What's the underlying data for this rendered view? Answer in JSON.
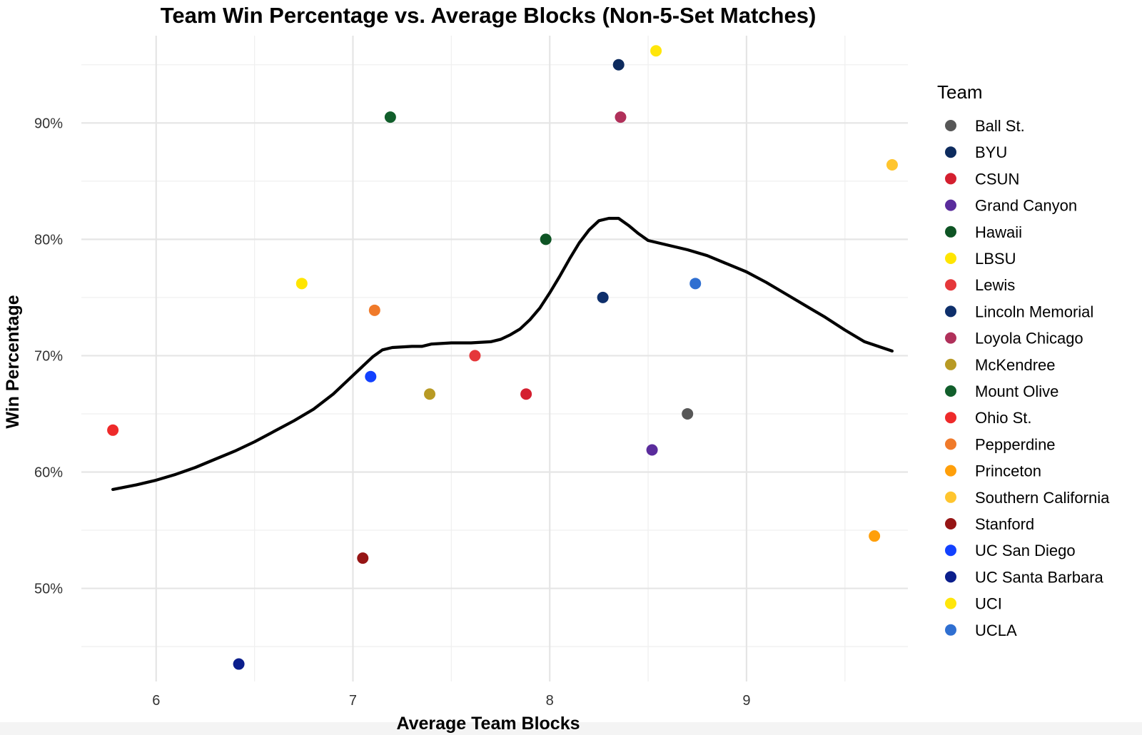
{
  "chart_data": {
    "type": "scatter",
    "title": "Team Win Percentage vs. Average Blocks (Non-5-Set Matches)",
    "xlabel": "Average Team Blocks",
    "ylabel": "Win Percentage",
    "xlim": [
      5.62,
      9.82
    ],
    "ylim": [
      0.42,
      0.975
    ],
    "x_ticks": [
      6,
      7,
      8,
      9
    ],
    "x_tick_labels": [
      "6",
      "7",
      "8",
      "9"
    ],
    "y_ticks": [
      0.5,
      0.6,
      0.7,
      0.8,
      0.9
    ],
    "y_tick_labels": [
      "50%",
      "60%",
      "70%",
      "80%",
      "90%"
    ],
    "grid": true,
    "legend": {
      "title": "Team",
      "placement": "right",
      "entries": [
        {
          "name": "Ball St.",
          "color": "#575757"
        },
        {
          "name": "BYU",
          "color": "#0d2b5e"
        },
        {
          "name": "CSUN",
          "color": "#d41f2f"
        },
        {
          "name": "Grand Canyon",
          "color": "#5a2c9c"
        },
        {
          "name": "Hawaii",
          "color": "#0e5424"
        },
        {
          "name": "LBSU",
          "color": "#ffe500"
        },
        {
          "name": "Lewis",
          "color": "#e5373a"
        },
        {
          "name": "Lincoln Memorial",
          "color": "#0e2f6b"
        },
        {
          "name": "Loyola Chicago",
          "color": "#b0305a"
        },
        {
          "name": "McKendree",
          "color": "#b89a24"
        },
        {
          "name": "Mount Olive",
          "color": "#115e2b"
        },
        {
          "name": "Ohio St.",
          "color": "#ee2a2a"
        },
        {
          "name": "Pepperdine",
          "color": "#f07a2a"
        },
        {
          "name": "Princeton",
          "color": "#ff9f0a"
        },
        {
          "name": "Southern California",
          "color": "#ffc52e"
        },
        {
          "name": "Stanford",
          "color": "#961515"
        },
        {
          "name": "UC San Diego",
          "color": "#1241ff"
        },
        {
          "name": "UC Santa Barbara",
          "color": "#0b1e8c"
        },
        {
          "name": "UCI",
          "color": "#ffe60a"
        },
        {
          "name": "UCLA",
          "color": "#2f6fd1"
        }
      ]
    },
    "points": [
      {
        "team": "Ball St.",
        "x": 8.7,
        "y": 0.65
      },
      {
        "team": "BYU",
        "x": 8.35,
        "y": 0.95
      },
      {
        "team": "CSUN",
        "x": 7.88,
        "y": 0.667
      },
      {
        "team": "Grand Canyon",
        "x": 8.52,
        "y": 0.619
      },
      {
        "team": "Hawaii",
        "x": 7.98,
        "y": 0.8
      },
      {
        "team": "LBSU",
        "x": 6.74,
        "y": 0.762
      },
      {
        "team": "Lewis",
        "x": 7.62,
        "y": 0.7
      },
      {
        "team": "Lincoln Memorial",
        "x": 8.27,
        "y": 0.75
      },
      {
        "team": "Loyola Chicago",
        "x": 8.36,
        "y": 0.905
      },
      {
        "team": "McKendree",
        "x": 7.39,
        "y": 0.667
      },
      {
        "team": "Mount Olive",
        "x": 7.19,
        "y": 0.905
      },
      {
        "team": "Ohio St.",
        "x": 5.78,
        "y": 0.636
      },
      {
        "team": "Pepperdine",
        "x": 7.11,
        "y": 0.739
      },
      {
        "team": "Princeton",
        "x": 9.65,
        "y": 0.545
      },
      {
        "team": "Southern California",
        "x": 9.74,
        "y": 0.864
      },
      {
        "team": "Stanford",
        "x": 7.05,
        "y": 0.526
      },
      {
        "team": "UC San Diego",
        "x": 7.09,
        "y": 0.682
      },
      {
        "team": "UC Santa Barbara",
        "x": 6.42,
        "y": 0.435
      },
      {
        "team": "UCI",
        "x": 8.54,
        "y": 0.962
      },
      {
        "team": "UCLA",
        "x": 8.74,
        "y": 0.762
      }
    ],
    "trend_line": {
      "type": "loess",
      "color": "#000000",
      "x": [
        5.78,
        5.9,
        6.0,
        6.1,
        6.2,
        6.3,
        6.4,
        6.5,
        6.6,
        6.7,
        6.8,
        6.9,
        7.0,
        7.1,
        7.15,
        7.2,
        7.3,
        7.35,
        7.4,
        7.5,
        7.6,
        7.7,
        7.75,
        7.8,
        7.85,
        7.9,
        7.95,
        8.0,
        8.05,
        8.1,
        8.15,
        8.2,
        8.25,
        8.3,
        8.35,
        8.4,
        8.45,
        8.5,
        8.6,
        8.7,
        8.8,
        8.9,
        9.0,
        9.1,
        9.2,
        9.3,
        9.4,
        9.5,
        9.6,
        9.74
      ],
      "y": [
        0.585,
        0.589,
        0.593,
        0.598,
        0.604,
        0.611,
        0.618,
        0.626,
        0.635,
        0.644,
        0.654,
        0.667,
        0.683,
        0.699,
        0.705,
        0.707,
        0.708,
        0.708,
        0.71,
        0.711,
        0.711,
        0.712,
        0.714,
        0.718,
        0.723,
        0.731,
        0.741,
        0.754,
        0.768,
        0.783,
        0.797,
        0.808,
        0.816,
        0.818,
        0.818,
        0.812,
        0.805,
        0.799,
        0.795,
        0.791,
        0.786,
        0.779,
        0.772,
        0.763,
        0.753,
        0.743,
        0.733,
        0.722,
        0.712,
        0.704
      ]
    }
  }
}
